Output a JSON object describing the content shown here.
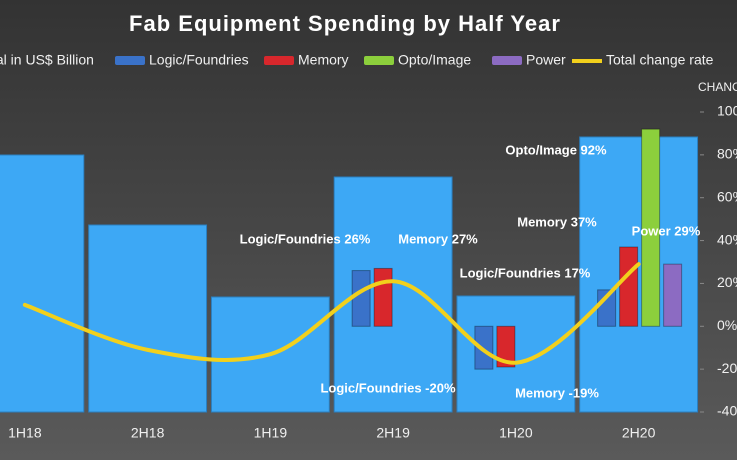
{
  "chart_data": {
    "type": "bar",
    "title": "Fab Equipment Spending by Half Year",
    "categories": [
      "1H18",
      "2H18",
      "1H19",
      "2H19",
      "1H20",
      "2H20"
    ],
    "ylim": [
      0,
      30
    ],
    "y2label": "CHANC",
    "y2lim": [
      -40,
      100
    ],
    "y2ticks": [
      {
        "value": -40,
        "label": "-40"
      },
      {
        "value": -20,
        "label": "-20"
      },
      {
        "value": 0,
        "label": "0%"
      },
      {
        "value": 20,
        "label": "20%"
      },
      {
        "value": 40,
        "label": "40%"
      },
      {
        "value": 60,
        "label": "60%"
      },
      {
        "value": 80,
        "label": "80%"
      },
      {
        "value": 100,
        "label": "100"
      }
    ],
    "series": [
      {
        "name": "tal in US$ Billion",
        "color": "#3da8f5",
        "axis": "y",
        "values": [
          25.7,
          18.7,
          11.5,
          23.5,
          11.6,
          27.5
        ]
      },
      {
        "name": "Logic/Foundries",
        "color": "#3a72c9",
        "axis": "y2",
        "values": [
          null,
          null,
          null,
          26,
          -20,
          17
        ],
        "value_labels": [
          null,
          null,
          null,
          "Logic/Foundries 26%",
          "Logic/Foundries -20%",
          "Logic/Foundries 17%"
        ]
      },
      {
        "name": "Memory",
        "color": "#d8272c",
        "axis": "y2",
        "values": [
          null,
          null,
          null,
          27,
          -19,
          37
        ],
        "value_labels": [
          null,
          null,
          null,
          "Memory 27%",
          "Memory -19%",
          "Memory 37%"
        ]
      },
      {
        "name": "Opto/Image",
        "color": "#8ccf3c",
        "axis": "y2",
        "values": [
          null,
          null,
          null,
          null,
          null,
          92
        ],
        "value_labels": [
          null,
          null,
          null,
          null,
          null,
          "Opto/Image 92%"
        ]
      },
      {
        "name": "Power",
        "color": "#8c6bc2",
        "axis": "y2",
        "values": [
          null,
          null,
          null,
          null,
          null,
          29
        ],
        "value_labels": [
          null,
          null,
          null,
          null,
          null,
          "Power 29%"
        ]
      },
      {
        "name": "Total change rate",
        "type": "line",
        "color": "#f2d01c",
        "axis": "y2",
        "values": [
          10,
          -11,
          -13,
          21,
          -17,
          29
        ]
      }
    ]
  }
}
